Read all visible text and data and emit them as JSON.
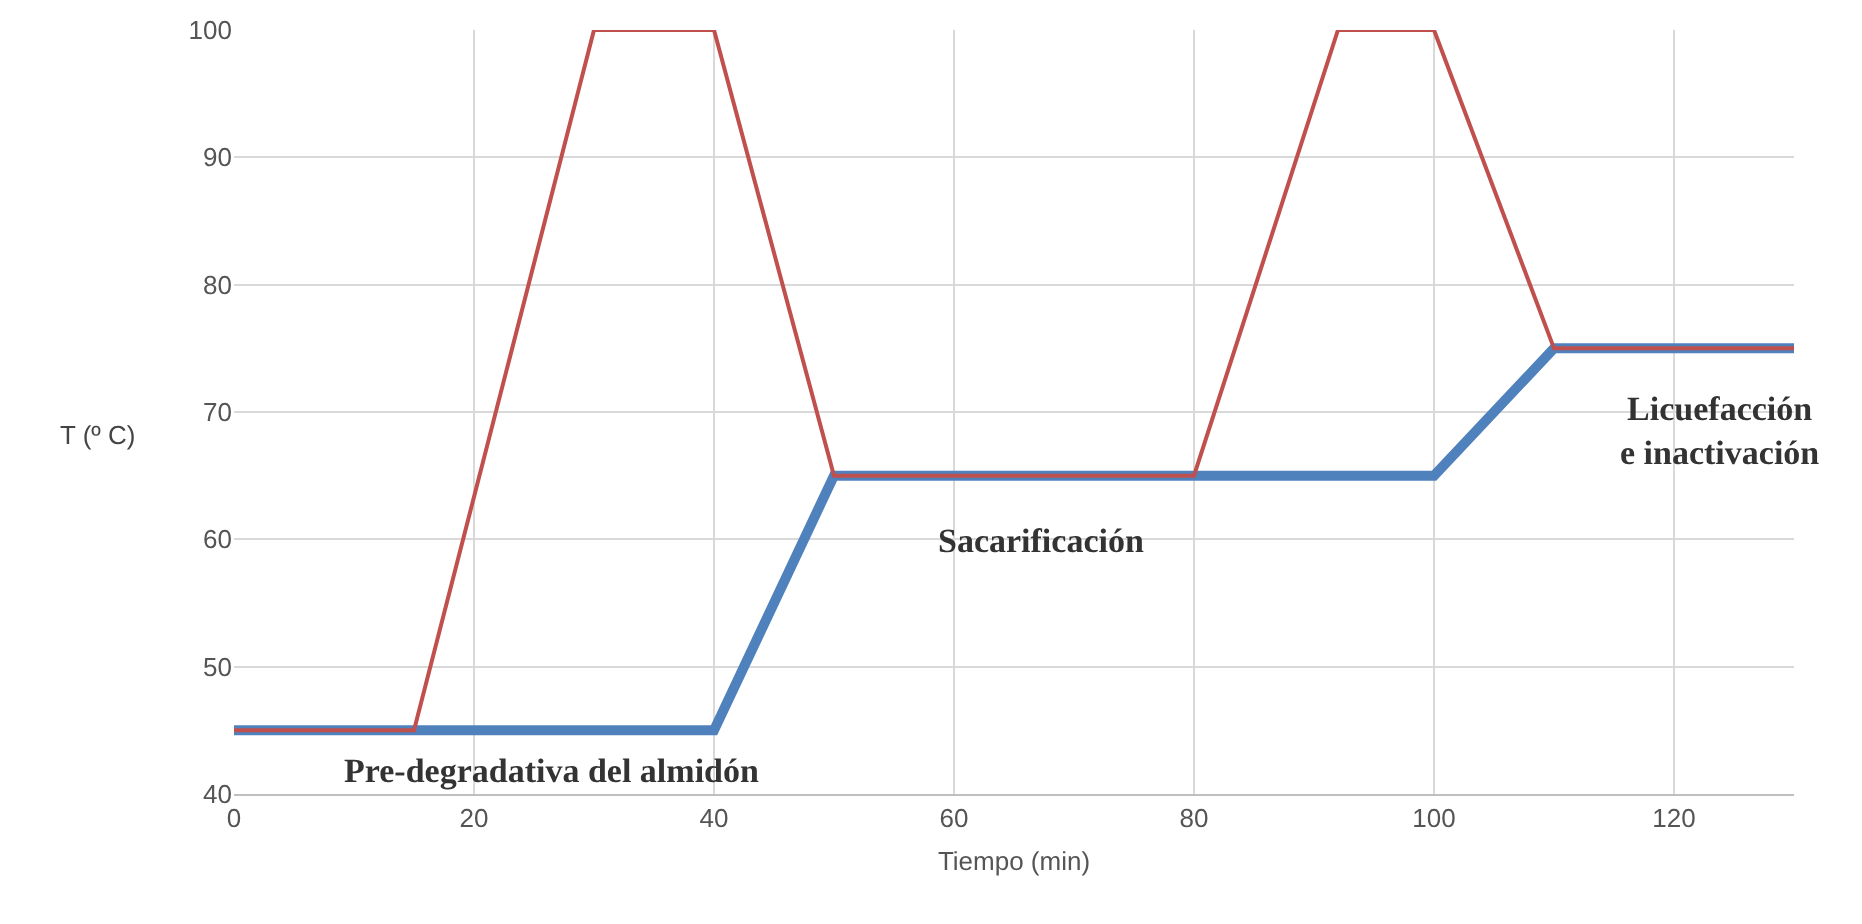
{
  "chart_data": {
    "type": "line",
    "xlabel": "Tiempo (min)",
    "ylabel": "T (º C)",
    "xlim": [
      0,
      130
    ],
    "xticks": [
      0,
      20,
      40,
      60,
      80,
      100,
      120
    ],
    "ylim": [
      40,
      100
    ],
    "yticks": [
      40,
      50,
      60,
      70,
      80,
      90,
      100
    ],
    "grid": true,
    "marker": "none",
    "line_style": "solid",
    "series": [
      {
        "color": "#4f81bd",
        "x": [
          0,
          40,
          50,
          100,
          110,
          130
        ],
        "values": [
          45,
          45,
          65,
          65,
          75,
          75
        ]
      },
      {
        "color": "#c0504d",
        "x": [
          0,
          15,
          30,
          40,
          50,
          80,
          92,
          100,
          110,
          130
        ],
        "values": [
          45,
          45,
          100,
          100,
          65,
          65,
          100,
          100,
          75,
          75
        ]
      }
    ],
    "annotations": [
      "Pre-degradativa del almidón",
      "Sacarificación",
      "Licuefacción\ne inactivación"
    ]
  }
}
